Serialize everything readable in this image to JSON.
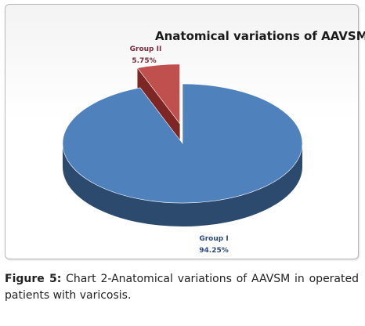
{
  "chart_data": {
    "type": "pie",
    "title": "Anatomical variations of AAVSM",
    "slices": [
      {
        "label": "Group I",
        "value": 94.25,
        "value_label": "94.25%",
        "color": "#4f81bd",
        "side_color": "#2b4a6e",
        "label_color": "#2b4a80"
      },
      {
        "label": "Group II",
        "value": 5.75,
        "value_label": "5.75%",
        "color": "#c0504d",
        "side_color": "#7d2624",
        "label_color": "#7a2a3d"
      }
    ],
    "legend": "none",
    "style": "3d-exploded"
  },
  "caption": {
    "label": "Figure 5:",
    "text": " Chart 2-Anatomical variations of AAVSM in operated patients with varicosis."
  }
}
